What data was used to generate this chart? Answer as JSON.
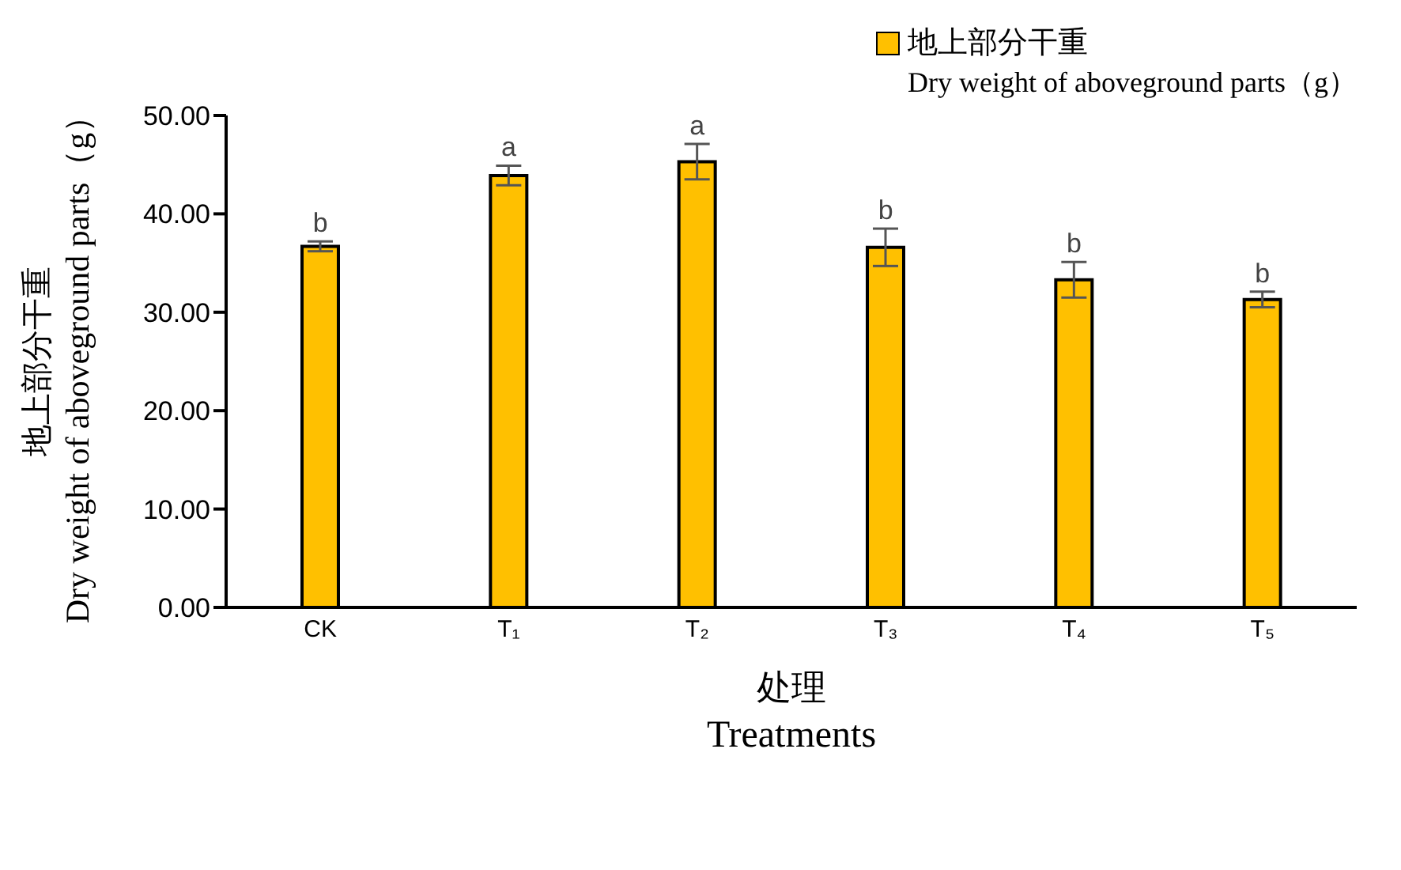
{
  "chart_data": {
    "type": "bar",
    "xlabel": "处理\nTreatments",
    "ylabel": "地上部分干重\nDry weight of aboveground parts（g）",
    "categories": [
      "CK",
      "T₁",
      "T₂",
      "T₃",
      "T₄",
      "T₅"
    ],
    "series": [
      {
        "name": "地上部分干重\nDry weight of aboveground parts（g）",
        "color": "#ffc000",
        "values": [
          36.7,
          43.9,
          45.3,
          36.6,
          33.3,
          31.3
        ],
        "errors": [
          0.5,
          1.0,
          1.8,
          1.9,
          1.8,
          0.8
        ]
      }
    ],
    "ylim": [
      0,
      50
    ],
    "yticks": [
      {
        "value": 0,
        "label": "0.00"
      },
      {
        "value": 10,
        "label": "10.00"
      },
      {
        "value": 20,
        "label": "20.00"
      },
      {
        "value": 30,
        "label": "30.00"
      },
      {
        "value": 40,
        "label": "40.00"
      },
      {
        "value": 50,
        "label": "50.00"
      }
    ],
    "annotations": [
      {
        "text": "b",
        "x": "CK",
        "y": 37.2
      },
      {
        "text": "a",
        "x": "T₁",
        "y": 44.9
      },
      {
        "text": "a",
        "x": "T₂",
        "y": 47.1
      },
      {
        "text": "b",
        "x": "T₃",
        "y": 38.5
      },
      {
        "text": "b",
        "x": "T₄",
        "y": 35.1
      },
      {
        "text": "b",
        "x": "T₅",
        "y": 32.1
      }
    ],
    "grid": false,
    "legend": "top right"
  }
}
